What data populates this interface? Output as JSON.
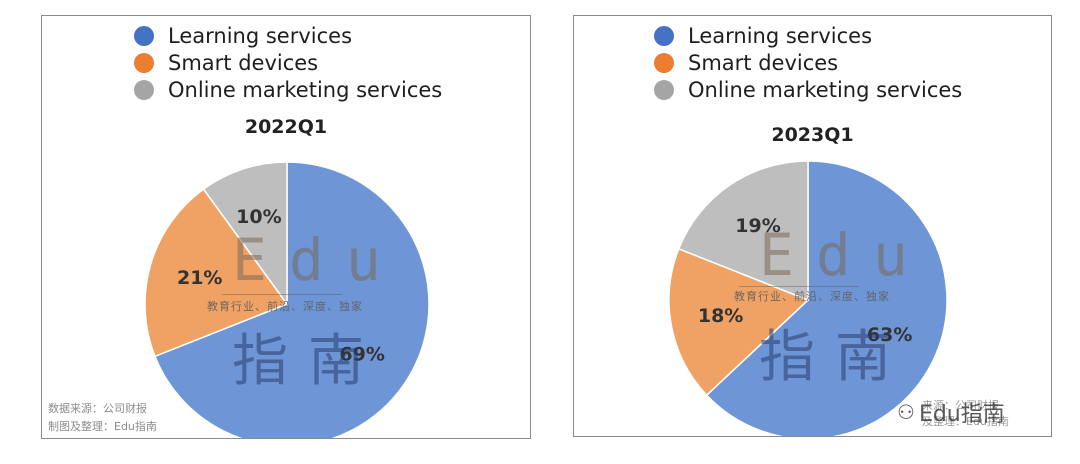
{
  "colors": {
    "learning": "#6e95d6",
    "smart": "#f0a264",
    "marketing": "#bebebe",
    "legend_learning": "#4472c4",
    "legend_smart": "#ed7d31",
    "legend_marketing": "#a5a5a5"
  },
  "chart_data": [
    {
      "type": "pie",
      "title": "2022Q1",
      "legend": "top",
      "series": [
        {
          "name": "Learning services",
          "value": 69,
          "label": "69%"
        },
        {
          "name": "Smart devices",
          "value": 21,
          "label": "21%"
        },
        {
          "name": "Online marketing services",
          "value": 10,
          "label": "10%"
        }
      ]
    },
    {
      "type": "pie",
      "title": "2023Q1",
      "legend": "top",
      "series": [
        {
          "name": "Learning services",
          "value": 63,
          "label": "63%"
        },
        {
          "name": "Smart devices",
          "value": 18,
          "label": "18%"
        },
        {
          "name": "Online marketing services",
          "value": 19,
          "label": "19%"
        }
      ]
    }
  ],
  "watermark": {
    "edu": "Edu",
    "sub": "教育行业、前沿、深度、独家",
    "zh": "指南"
  },
  "source": {
    "line1": "数据来源：公司财报",
    "line2": "制图及整理：Edu指南"
  },
  "stamp": {
    "icon": "wechat-icon",
    "text": "Edu指南",
    "faint1": "来源：公司财报",
    "faint2": "及整理：Edu指南"
  }
}
